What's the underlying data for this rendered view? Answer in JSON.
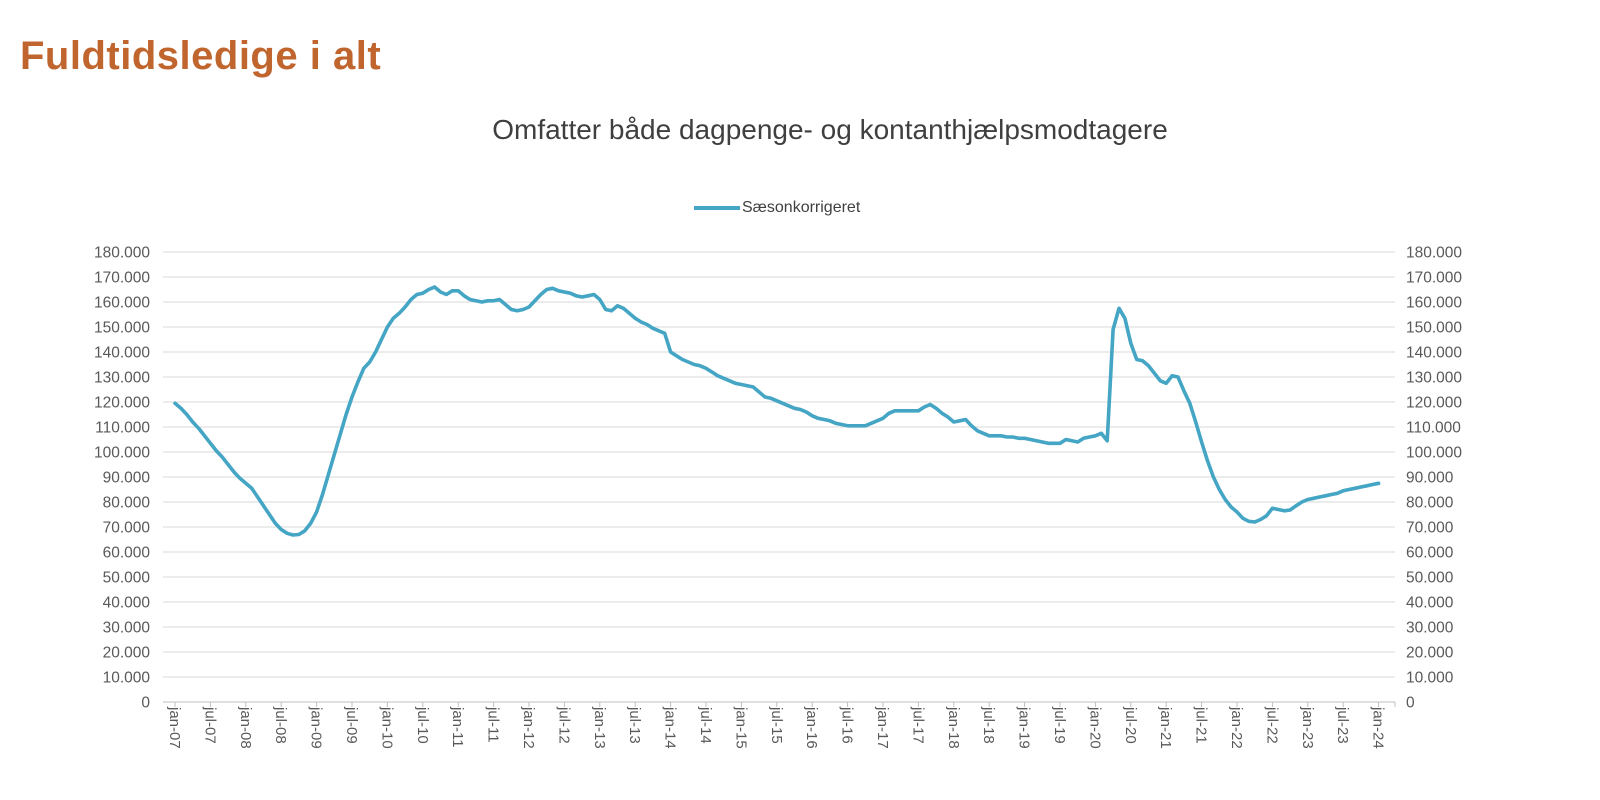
{
  "page": {
    "title": "Fuldtidsledige i alt"
  },
  "chart": {
    "subtitle": "Omfatter både dagpenge- og kontanthjælpsmodtagere",
    "legend_label": "Sæsonkorrigeret",
    "colors": {
      "line": "#44a5c4",
      "grid": "#d9d9d9",
      "axis_line": "#bfbfbf",
      "axis_text": "#595959",
      "title_text": "#c0652e",
      "subtitle_text": "#3f3f3f"
    }
  },
  "chart_data": {
    "type": "line",
    "title": "Omfatter både dagpenge- og kontanthjælpsmodtagere",
    "x_unit": "month",
    "x_range": [
      "jan-07",
      "jan-24"
    ],
    "x_tick_labels": [
      "jan-07",
      "jul-07",
      "jan-08",
      "jul-08",
      "jan-09",
      "jul-09",
      "jan-10",
      "jul-10",
      "jan-11",
      "jul-11",
      "jan-12",
      "jul-12",
      "jan-13",
      "jul-13",
      "jan-14",
      "jul-14",
      "jan-15",
      "jul-15",
      "jan-16",
      "jul-16",
      "jan-17",
      "jul-17",
      "jan-18",
      "jul-18",
      "jan-19",
      "jul-19",
      "jan-20",
      "jul-20",
      "jan-21",
      "jul-21",
      "jan-22",
      "jul-22",
      "jan-23",
      "jul-23",
      "jan-24"
    ],
    "y_tick_labels": [
      "0",
      "10.000",
      "20.000",
      "30.000",
      "40.000",
      "50.000",
      "60.000",
      "70.000",
      "80.000",
      "90.000",
      "100.000",
      "110.000",
      "120.000",
      "130.000",
      "140.000",
      "150.000",
      "160.000",
      "170.000",
      "180.000"
    ],
    "y_tick_step": 10000,
    "ylim": [
      0,
      180000
    ],
    "grid": true,
    "legend_position": "top-center",
    "series": [
      {
        "name": "Sæsonkorrigeret",
        "color": "#44a5c4",
        "values": [
          119500,
          117500,
          115000,
          112000,
          109500,
          106500,
          103500,
          100500,
          98000,
          95000,
          92000,
          89500,
          87500,
          85500,
          82000,
          78500,
          75000,
          71500,
          69000,
          67500,
          66800,
          67000,
          68500,
          71500,
          76000,
          83000,
          91000,
          99000,
          107000,
          115000,
          122000,
          128000,
          133500,
          136000,
          140000,
          145000,
          150000,
          153500,
          155500,
          158000,
          161000,
          163000,
          163500,
          165000,
          166000,
          164000,
          163000,
          164500,
          164500,
          162500,
          161000,
          160500,
          160000,
          160500,
          160500,
          161000,
          159000,
          157000,
          156500,
          157000,
          158000,
          160500,
          163000,
          165000,
          165500,
          164500,
          164000,
          163500,
          162500,
          162000,
          162500,
          163000,
          161000,
          157000,
          156500,
          158500,
          157500,
          155500,
          153500,
          152000,
          151000,
          149500,
          148500,
          147500,
          140000,
          138500,
          137000,
          136000,
          135000,
          134500,
          133500,
          132000,
          130500,
          129500,
          128500,
          127500,
          127000,
          126500,
          126000,
          124000,
          122000,
          121500,
          120500,
          119500,
          118500,
          117500,
          117000,
          116000,
          114500,
          113500,
          113000,
          112500,
          111500,
          111000,
          110500,
          110500,
          110500,
          110500,
          111500,
          112500,
          113500,
          115500,
          116500,
          116500,
          116500,
          116500,
          116500,
          118000,
          119000,
          117500,
          115500,
          114000,
          112000,
          112500,
          113000,
          110500,
          108500,
          107500,
          106500,
          106500,
          106500,
          106000,
          106000,
          105500,
          105500,
          105000,
          104500,
          104000,
          103500,
          103500,
          103500,
          105000,
          104500,
          104000,
          105500,
          106000,
          106500,
          107500,
          104500,
          149000,
          157500,
          153500,
          143500,
          137000,
          136500,
          134500,
          131500,
          128500,
          127500,
          130500,
          130000,
          124500,
          119500,
          112000,
          104000,
          96500,
          90000,
          85000,
          81000,
          78000,
          76000,
          73500,
          72300,
          72000,
          73000,
          74500,
          77500,
          77000,
          76500,
          76800,
          78500,
          80000,
          81000,
          81500,
          82000,
          82500,
          83000,
          83500,
          84500,
          85000,
          85500,
          86000,
          86500,
          87000,
          87500
        ]
      }
    ]
  }
}
